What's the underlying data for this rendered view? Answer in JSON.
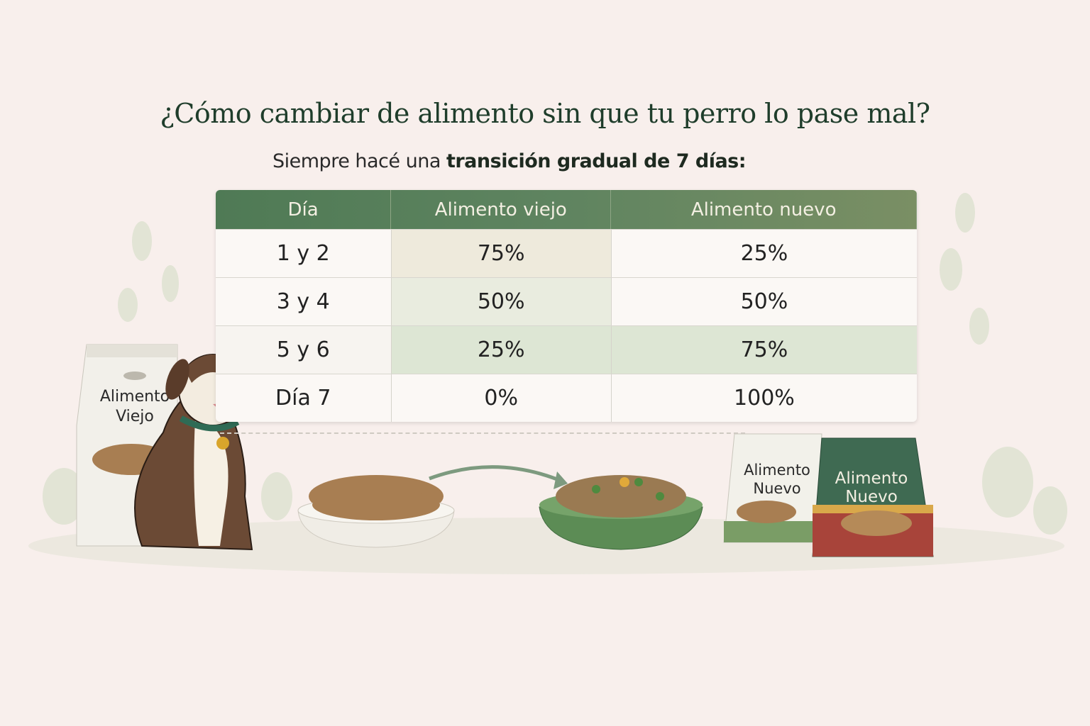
{
  "title": "¿Cómo cambiar de alimento sin que tu perro lo pase mal?",
  "subtitle": {
    "prefix": "Siempre hacé una ",
    "bold": "transición gradual de 7 días:"
  },
  "table": {
    "headers": [
      "Día",
      "Alimento viejo",
      "Alimento nuevo"
    ],
    "rows": [
      [
        "1 y 2",
        "75%",
        "25%"
      ],
      [
        "3 y 4",
        "50%",
        "50%"
      ],
      [
        "5 y 6",
        "25%",
        "75%"
      ],
      [
        "Día 7",
        "0%",
        "100%"
      ]
    ]
  },
  "illustrations": {
    "old_bag": {
      "line1": "Alimento",
      "line2": "Viejo"
    },
    "new_bag_light": {
      "line1": "Alimento",
      "line2": "Nuevo"
    },
    "new_bag_green": {
      "line1": "Alimento",
      "line2": "Nuevo"
    }
  },
  "colors": {
    "header_green": "#5a8059",
    "title_green": "#1f3d2b",
    "background": "#f8efec"
  }
}
